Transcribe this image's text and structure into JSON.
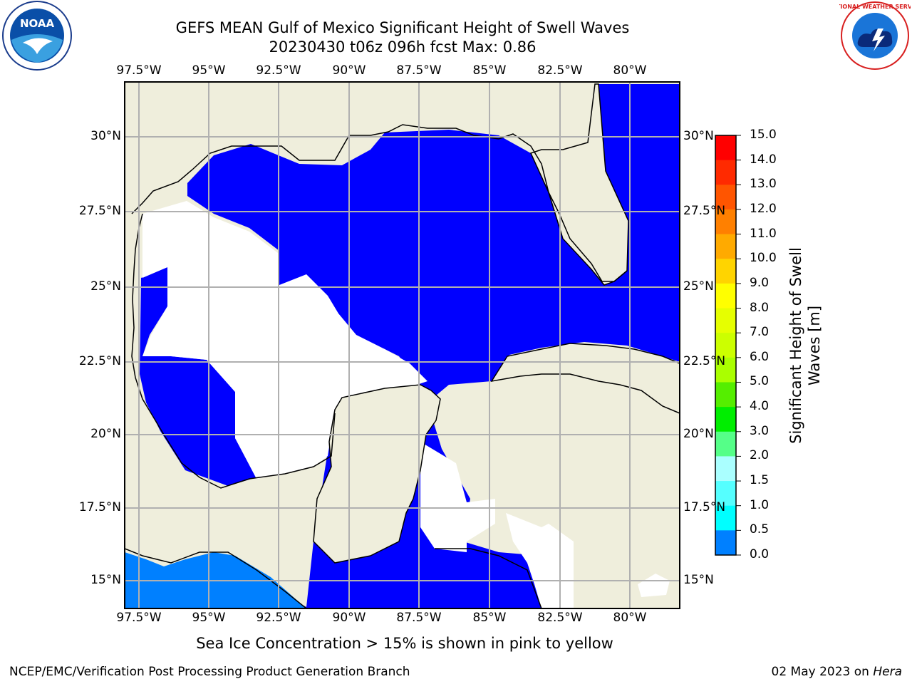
{
  "header": {
    "title_line1": "GEFS MEAN Gulf of Mexico Significant Height of Swell Waves",
    "title_line2": "20230430 t06z 096h fcst   Max: 0.86"
  },
  "logos": {
    "left": "NOAA",
    "right": "NATIONAL WEATHER SERVICE"
  },
  "map": {
    "lon_ticks": [
      "97.5°W",
      "95°W",
      "92.5°W",
      "90°W",
      "87.5°W",
      "85°W",
      "82.5°W",
      "80°W"
    ],
    "lat_ticks": [
      "30°N",
      "27.5°N",
      "25°N",
      "22.5°N",
      "20°N",
      "17.5°N",
      "15°N"
    ],
    "colors": {
      "land": "#efeedc",
      "zero": "#0000ff",
      "half": "#0080ff",
      "no_data": "#ffffff",
      "grid": "#b0b0b0"
    }
  },
  "colorbar": {
    "title": "Significant Height of Swell Waves [m]",
    "labels": [
      "15.0",
      "14.0",
      "13.0",
      "12.0",
      "11.0",
      "10.0",
      "9.0",
      "8.0",
      "7.0",
      "6.0",
      "5.0",
      "4.0",
      "3.0",
      "2.0",
      "1.5",
      "1.0",
      "0.5",
      "0.0"
    ],
    "colors": [
      "#ff0000",
      "#ff2a00",
      "#ff5500",
      "#ff8000",
      "#ffaa00",
      "#ffd400",
      "#ffff00",
      "#e6ff00",
      "#ccff00",
      "#aaff00",
      "#55ee00",
      "#00ee00",
      "#55ff88",
      "#aaffff",
      "#55ffff",
      "#00ffff",
      "#0080ff",
      "#0000ff"
    ]
  },
  "note": "Sea Ice Concentration > 15% is shown in pink to yellow",
  "footer": {
    "left": "NCEP/EMC/Verification Post Processing Product Generation Branch",
    "right_prefix": "02 May 2023 on ",
    "right_host": "Hera"
  }
}
